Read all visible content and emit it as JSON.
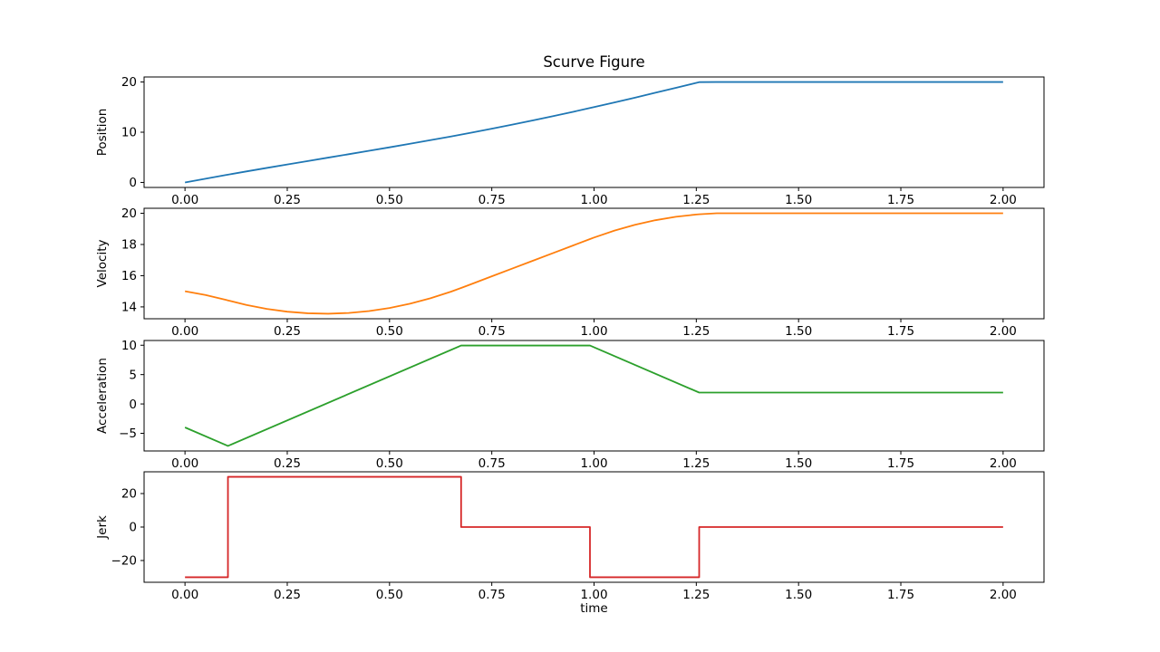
{
  "figure": {
    "title": "Scurve Figure",
    "xlabel": "time",
    "background_color": "#ffffff",
    "axes_edge_color": "#000000",
    "text_color": "#000000"
  },
  "chart_data": {
    "type": "line",
    "title": "Scurve Figure",
    "xlabel": "time",
    "grid": false,
    "legend": null,
    "xlim": [
      -0.1,
      2.1
    ],
    "xticks": [
      0,
      0.25,
      0.5,
      0.75,
      1.0,
      1.25,
      1.5,
      1.75,
      2.0
    ],
    "xtick_labels": [
      "0.00",
      "0.25",
      "0.50",
      "0.75",
      "1.00",
      "1.25",
      "1.50",
      "1.75",
      "2.00"
    ],
    "subplots": [
      {
        "id": "position",
        "ylabel": "Position",
        "color": "#1f77b4",
        "ylim": [
          -1,
          21
        ],
        "yticks": [
          0,
          10,
          20
        ],
        "x": [
          0,
          0.05,
          0.1,
          0.105,
          0.15,
          0.2,
          0.25,
          0.3,
          0.35,
          0.4,
          0.45,
          0.5,
          0.55,
          0.6,
          0.65,
          0.675,
          0.7,
          0.75,
          0.8,
          0.85,
          0.9,
          0.95,
          0.99,
          1.0,
          1.05,
          1.1,
          1.15,
          1.2,
          1.25,
          1.257,
          1.3,
          2.0
        ],
        "y": [
          0,
          0.744,
          1.475,
          1.547,
          2.189,
          2.889,
          3.577,
          4.259,
          4.938,
          5.617,
          6.3,
          6.991,
          7.694,
          8.413,
          9.151,
          9.528,
          9.912,
          10.697,
          11.507,
          12.343,
          13.203,
          14.088,
          14.814,
          14.998,
          15.931,
          16.885,
          17.856,
          18.84,
          19.832,
          19.97,
          20,
          20
        ]
      },
      {
        "id": "velocity",
        "ylabel": "Velocity",
        "color": "#ff7f0e",
        "ylim": [
          13.24,
          20.32
        ],
        "yticks": [
          14,
          16,
          18,
          20
        ],
        "x": [
          0,
          0.05,
          0.1,
          0.105,
          0.15,
          0.2,
          0.25,
          0.3,
          0.35,
          0.4,
          0.45,
          0.5,
          0.55,
          0.6,
          0.65,
          0.675,
          0.7,
          0.75,
          0.8,
          0.85,
          0.9,
          0.95,
          0.99,
          1.0,
          1.05,
          1.1,
          1.15,
          1.2,
          1.25,
          1.257,
          1.3,
          2.0
        ],
        "y": [
          15,
          14.762,
          14.45,
          14.415,
          14.123,
          13.871,
          13.693,
          13.591,
          13.563,
          13.611,
          13.733,
          13.931,
          14.203,
          14.551,
          14.973,
          15.213,
          15.461,
          15.959,
          16.456,
          16.954,
          17.451,
          17.949,
          18.347,
          18.445,
          18.89,
          19.26,
          19.555,
          19.775,
          19.92,
          19.934,
          20,
          20
        ]
      },
      {
        "id": "acceleration",
        "ylabel": "Acceleration",
        "color": "#2ca02c",
        "ylim": [
          -8.01,
          10.81
        ],
        "yticks": [
          -5,
          0,
          5,
          10
        ],
        "x": [
          0,
          0.105,
          0.675,
          0.99,
          1.257,
          2.0
        ],
        "y": [
          -4,
          -7.15,
          9.95,
          9.95,
          1.94,
          1.94
        ]
      },
      {
        "id": "jerk",
        "ylabel": "Jerk",
        "color": "#d62728",
        "ylim": [
          -33,
          33
        ],
        "yticks": [
          -20,
          0,
          20
        ],
        "x": [
          0,
          0.105,
          0.105,
          0.675,
          0.675,
          0.99,
          0.99,
          1.257,
          1.257,
          2.0
        ],
        "y": [
          -30,
          -30,
          30,
          30,
          0,
          0,
          -30,
          -30,
          0,
          0
        ]
      }
    ]
  }
}
